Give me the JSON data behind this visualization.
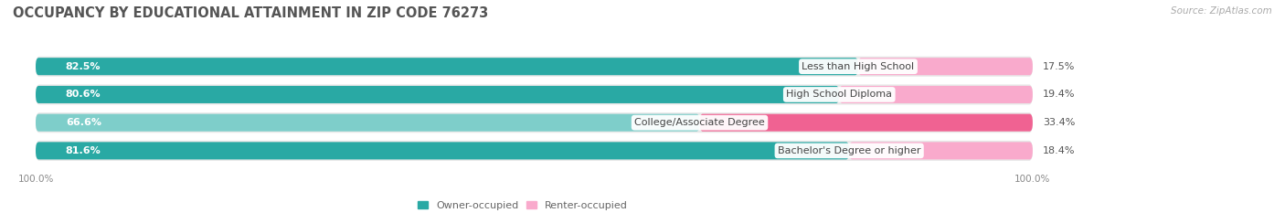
{
  "title": "OCCUPANCY BY EDUCATIONAL ATTAINMENT IN ZIP CODE 76273",
  "source": "Source: ZipAtlas.com",
  "categories": [
    "Less than High School",
    "High School Diploma",
    "College/Associate Degree",
    "Bachelor's Degree or higher"
  ],
  "owner_pct": [
    82.5,
    80.6,
    66.6,
    81.6
  ],
  "renter_pct": [
    17.5,
    19.4,
    33.4,
    18.4
  ],
  "owner_color_dark": "#29a9a4",
  "owner_color_light": "#7ececa",
  "renter_color_dark": "#f06292",
  "renter_color_light": "#f9aacc",
  "bg_color": "#ffffff",
  "row_bg_color": "#e8e8e8",
  "title_fontsize": 10.5,
  "source_fontsize": 7.5,
  "label_fontsize": 8,
  "pct_fontsize": 8,
  "axis_label_fontsize": 7.5,
  "legend_fontsize": 8
}
